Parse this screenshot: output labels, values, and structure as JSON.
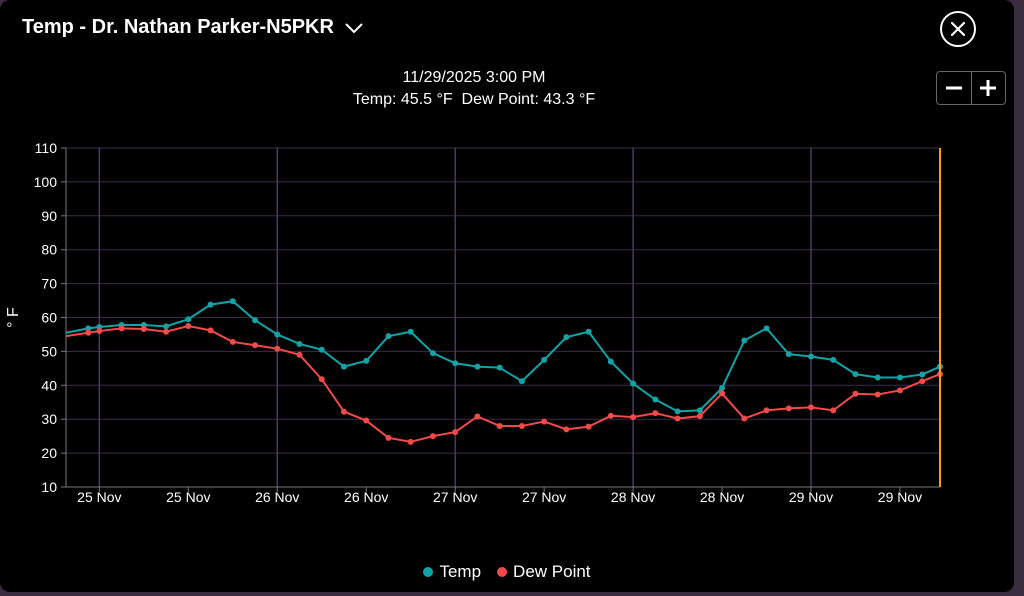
{
  "header": {
    "title": "Temp - Dr. Nathan Parker-N5PKR",
    "dropdown_icon": "chevron-down-icon",
    "close_icon": "close-icon"
  },
  "hover": {
    "timestamp": "11/29/2025 3:00 PM",
    "temp_label": "Temp: 45.5 °F",
    "dew_label": "Dew Point: 43.3 °F"
  },
  "zoom": {
    "minus_icon": "minus-icon",
    "plus_icon": "plus-icon"
  },
  "colors": {
    "temp": "#11a3a6",
    "dew": "#f24a4a",
    "cursor": "#ff9a1f",
    "grid": "#3a2c4a"
  },
  "chart_data": {
    "type": "line",
    "ylabel": "° F",
    "ylim": [
      10,
      110
    ],
    "y_ticks": [
      10,
      20,
      30,
      40,
      50,
      60,
      70,
      80,
      90,
      100,
      110
    ],
    "xlim": [
      -1.5,
      37.8
    ],
    "x_tick_positions": [
      0,
      4,
      8,
      12,
      16,
      20,
      24,
      28,
      32,
      36
    ],
    "x_tick_labels": [
      "25 Nov",
      "25 Nov",
      "26 Nov",
      "26 Nov",
      "27 Nov",
      "27 Nov",
      "28 Nov",
      "28 Nov",
      "29 Nov",
      "29 Nov"
    ],
    "major_gridlines": [
      0,
      8,
      16,
      24,
      32
    ],
    "cursor_x": 37.8,
    "x": [
      -1.5,
      -0.5,
      0,
      1,
      2,
      3,
      4,
      5,
      6,
      7,
      8,
      9,
      10,
      11,
      12,
      13,
      14,
      15,
      16,
      17,
      18,
      19,
      20,
      21,
      22,
      23,
      24,
      25,
      26,
      27,
      28,
      29,
      30,
      31,
      32,
      33,
      34,
      35,
      36,
      37,
      37.8
    ],
    "series": [
      {
        "name": "Temp",
        "values": [
          55.5,
          56.8,
          57.2,
          57.8,
          57.8,
          57.4,
          59.5,
          63.8,
          64.8,
          59.2,
          55,
          52.2,
          50.5,
          45.5,
          47.2,
          54.5,
          55.8,
          49.5,
          46.5,
          45.5,
          45.2,
          41.2,
          47.5,
          54.2,
          55.8,
          47,
          40.5,
          35.8,
          32.3,
          32.6,
          39.2,
          53.2,
          56.8,
          49.2,
          48.5,
          47.5,
          43.3,
          42.3,
          42.3,
          43.2,
          45.5
        ]
      },
      {
        "name": "Dew Point",
        "values": [
          54.5,
          55.5,
          56,
          56.8,
          56.6,
          55.8,
          57.5,
          56.2,
          52.8,
          51.8,
          50.8,
          49,
          41.8,
          32.2,
          29.6,
          24.5,
          23.3,
          25,
          26.2,
          30.8,
          28,
          28,
          29.3,
          27,
          27.8,
          31,
          30.6,
          31.8,
          30.2,
          30.9,
          37.6,
          30.2,
          32.6,
          33.2,
          33.5,
          32.6,
          37.5,
          37.3,
          38.5,
          41.2,
          43.3
        ]
      }
    ]
  },
  "legend": [
    {
      "name": "Temp",
      "color": "#11a3a6"
    },
    {
      "name": "Dew Point",
      "color": "#f24a4a"
    }
  ]
}
